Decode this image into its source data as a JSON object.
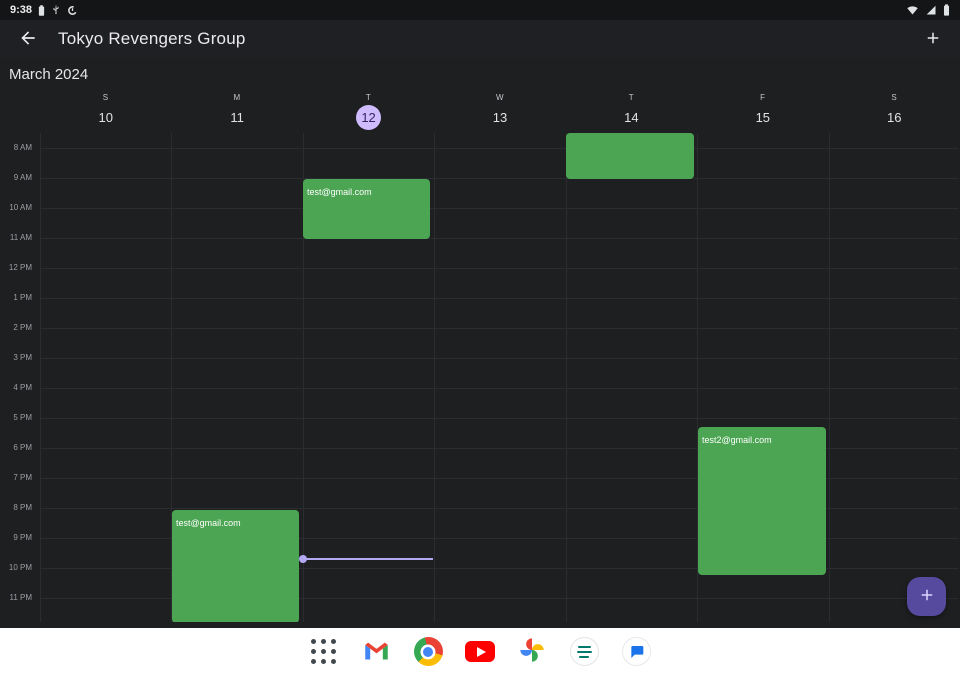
{
  "status_bar": {
    "time": "9:38",
    "left_icons": [
      "battery-notification-icon",
      "usb-icon",
      "data-saver-icon"
    ],
    "right_icons": [
      "wifi-icon",
      "cellular-signal-icon",
      "battery-icon"
    ]
  },
  "app_bar": {
    "title": "Tokyo Revengers Group",
    "back_icon": "arrow-left-icon",
    "add_icon": "plus-icon"
  },
  "calendar": {
    "month": "March 2024",
    "days": [
      {
        "letter": "S",
        "number": "10",
        "selected": false
      },
      {
        "letter": "M",
        "number": "11",
        "selected": false
      },
      {
        "letter": "T",
        "number": "12",
        "selected": true
      },
      {
        "letter": "W",
        "number": "13",
        "selected": false
      },
      {
        "letter": "T",
        "number": "14",
        "selected": false
      },
      {
        "letter": "F",
        "number": "15",
        "selected": false
      },
      {
        "letter": "S",
        "number": "16",
        "selected": false
      }
    ],
    "hours": [
      "8 AM",
      "9 AM",
      "10 AM",
      "11 AM",
      "12 PM",
      "1 PM",
      "2 PM",
      "3 PM",
      "4 PM",
      "5 PM",
      "6 PM",
      "7 PM",
      "8 PM",
      "9 PM",
      "10 PM",
      "11 PM"
    ],
    "events": [
      {
        "label": "test@gmail.com",
        "day_number": "11"
      },
      {
        "label": "test@gmail.com",
        "day_number": "12"
      },
      {
        "label": "",
        "day_number": "14"
      },
      {
        "label": "test2@gmail.com",
        "day_number": "15"
      }
    ],
    "colors": {
      "event_green": "#4ba553",
      "selected_day_bg": "#cfbcff",
      "now_indicator": "#b5a8f2",
      "fab_bg": "#564a9e"
    }
  },
  "fab": {
    "icon": "plus-icon"
  },
  "taskbar": {
    "icons": [
      "app-drawer-icon",
      "gmail-icon",
      "chrome-icon",
      "youtube-icon",
      "google-photos-icon",
      "notes-app-icon",
      "messages-icon"
    ]
  }
}
